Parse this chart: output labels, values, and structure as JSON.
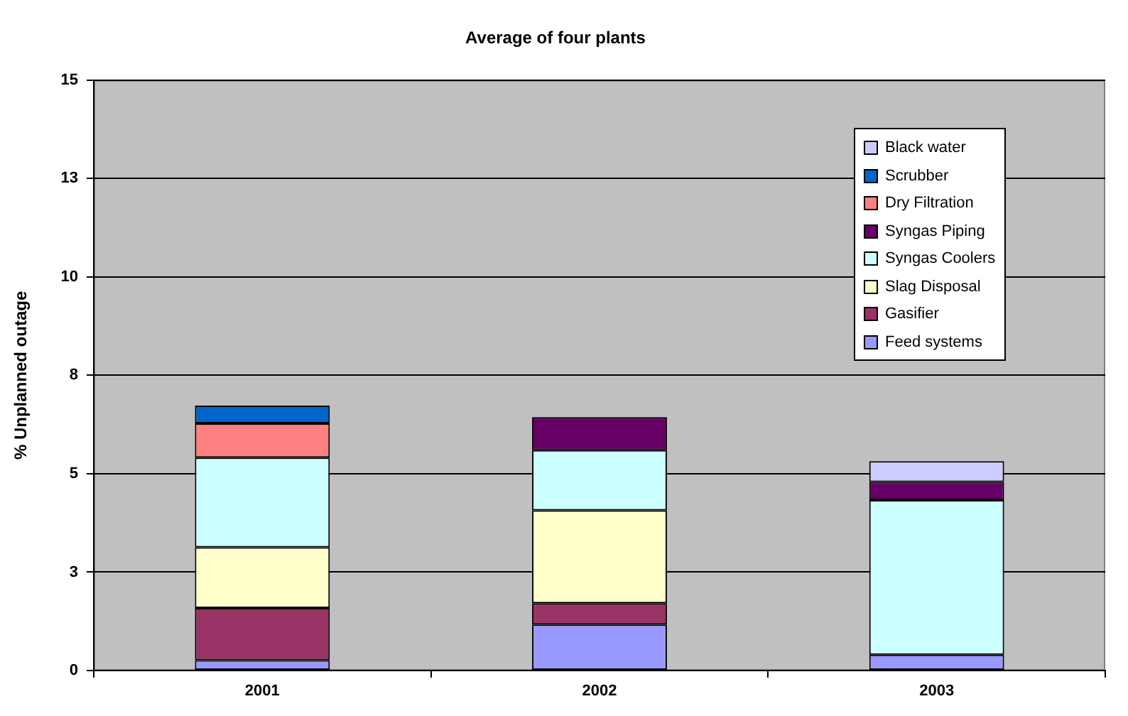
{
  "chart_data": {
    "type": "bar",
    "title": "Average of four plants",
    "ylabel": "% Unplanned outage",
    "categories": [
      "2001",
      "2002",
      "2003"
    ],
    "stacked": true,
    "ylim": [
      0,
      15
    ],
    "yticks": [
      0,
      {
        "value": 2.5,
        "label": "3"
      },
      5,
      {
        "value": 7.5,
        "label": "8"
      },
      10,
      {
        "value": 12.5,
        "label": "13"
      },
      15
    ],
    "grid": "y",
    "legend": "top right",
    "series": [
      {
        "name": "Feed systems",
        "color": "#9999ff",
        "values": [
          0.26,
          1.17,
          0.4
        ]
      },
      {
        "name": "Gasifier",
        "color": "#993366",
        "values": [
          1.33,
          0.54,
          null
        ]
      },
      {
        "name": "Slag Disposal",
        "color": "#ffffcc",
        "values": [
          1.54,
          2.36,
          null
        ]
      },
      {
        "name": "Syngas Coolers",
        "color": "#ccffff",
        "values": [
          2.28,
          1.53,
          3.93
        ]
      },
      {
        "name": "Syngas Piping",
        "color": "#660066",
        "values": [
          null,
          0.84,
          0.46
        ]
      },
      {
        "name": "Dry Filtration",
        "color": "#ff8080",
        "values": [
          0.87,
          null,
          null
        ]
      },
      {
        "name": "Scrubber",
        "color": "#0066cc",
        "values": [
          0.45,
          null,
          null
        ]
      },
      {
        "name": "Black water",
        "color": "#ccccff",
        "values": [
          null,
          null,
          0.53
        ]
      }
    ]
  }
}
